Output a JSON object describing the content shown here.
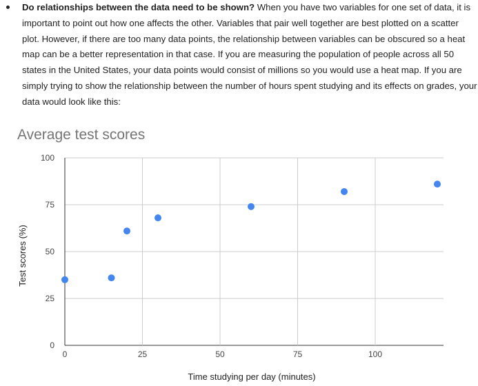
{
  "bullet": {
    "heading": "Do relationships between the data need to be shown?",
    "body": " When you have two variables for one set of data, it is important to point out how one affects the other. Variables that pair well together are best plotted on a scatter plot. However, if there are too many data points, the relationship between variables can be obscured so a heat map can be a better representation in that case. If you are measuring the population of people across all 50 states in the United States, your data points would consist of millions so you would use a heat map. If you are simply trying to show the relationship between the number of hours spent studying and its effects on grades, your data would look like this:"
  },
  "chart_data": {
    "type": "scatter",
    "title": "Average test scores",
    "xlabel": "Time studying per day (minutes)",
    "ylabel": "Test scores (%)",
    "xlim": [
      0,
      122
    ],
    "ylim": [
      0,
      100
    ],
    "xticks": [
      0,
      25,
      50,
      75,
      100
    ],
    "yticks": [
      0,
      25,
      50,
      75,
      100
    ],
    "grid": true,
    "legend": "none",
    "color": "#4285f4",
    "points": [
      {
        "x": 0,
        "y": 35
      },
      {
        "x": 15,
        "y": 36
      },
      {
        "x": 20,
        "y": 61
      },
      {
        "x": 30,
        "y": 68
      },
      {
        "x": 60,
        "y": 74
      },
      {
        "x": 90,
        "y": 82
      },
      {
        "x": 120,
        "y": 86
      }
    ]
  }
}
